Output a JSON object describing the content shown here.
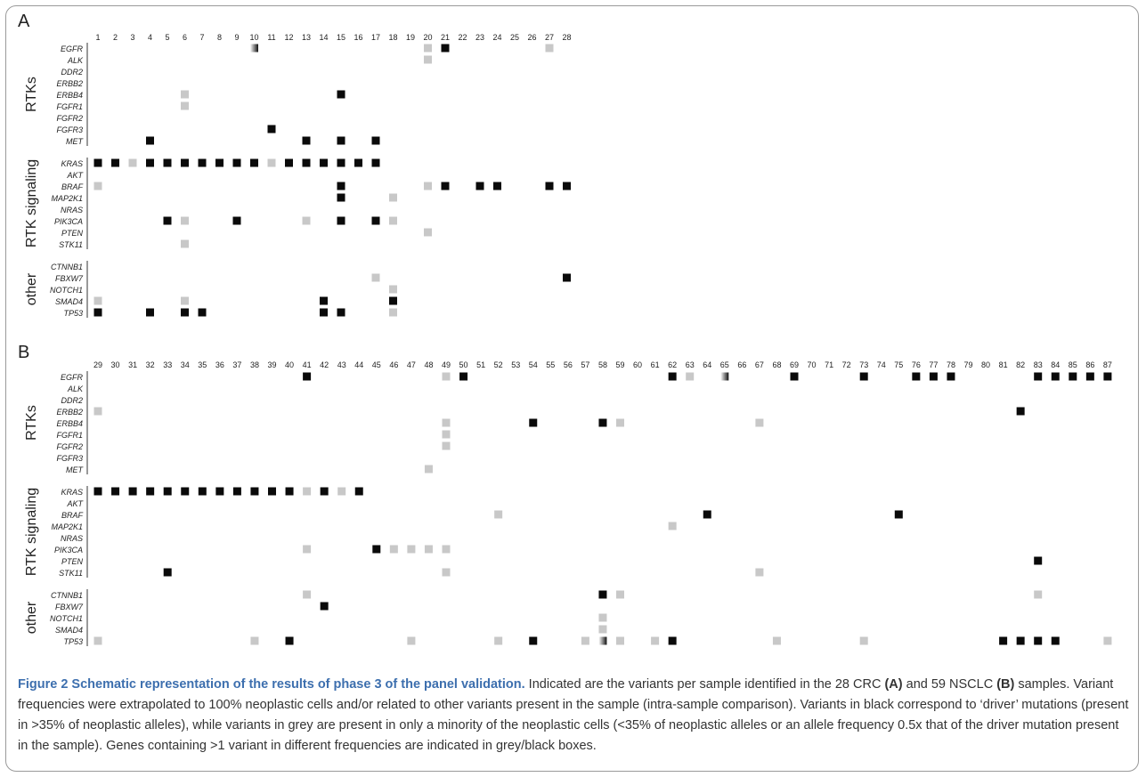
{
  "panels": [
    {
      "letter": "A",
      "samples": [
        "1",
        "2",
        "3",
        "4",
        "5",
        "6",
        "7",
        "8",
        "9",
        "10",
        "11",
        "12",
        "13",
        "14",
        "15",
        "16",
        "17",
        "18",
        "19",
        "20",
        "21",
        "22",
        "23",
        "24",
        "25",
        "26",
        "27",
        "28"
      ],
      "groups": [
        {
          "label": "RTKs",
          "genes": [
            "EGFR",
            "ALK",
            "DDR2",
            "ERBB2",
            "ERBB4",
            "FGFR1",
            "FGFR2",
            "FGFR3",
            "MET"
          ]
        },
        {
          "label": "RTK signaling",
          "genes": [
            "KRAS",
            "AKT",
            "BRAF",
            "MAP2K1",
            "NRAS",
            "PIK3CA",
            "PTEN",
            "STK11"
          ]
        },
        {
          "label": "other",
          "genes": [
            "CTNNB1",
            "FBXW7",
            "NOTCH1",
            "SMAD4",
            "TP53"
          ]
        }
      ],
      "cells": [
        [
          "EGFR",
          "10",
          "mixed"
        ],
        [
          "EGFR",
          "20",
          "grey"
        ],
        [
          "EGFR",
          "21",
          "black"
        ],
        [
          "EGFR",
          "27",
          "grey"
        ],
        [
          "ALK",
          "20",
          "grey"
        ],
        [
          "ERBB4",
          "6",
          "grey"
        ],
        [
          "ERBB4",
          "15",
          "black"
        ],
        [
          "FGFR1",
          "6",
          "grey"
        ],
        [
          "FGFR3",
          "11",
          "black"
        ],
        [
          "MET",
          "4",
          "black"
        ],
        [
          "MET",
          "13",
          "black"
        ],
        [
          "MET",
          "15",
          "black"
        ],
        [
          "MET",
          "17",
          "black"
        ],
        [
          "KRAS",
          "1",
          "black"
        ],
        [
          "KRAS",
          "2",
          "black"
        ],
        [
          "KRAS",
          "3",
          "grey"
        ],
        [
          "KRAS",
          "4",
          "black"
        ],
        [
          "KRAS",
          "5",
          "black"
        ],
        [
          "KRAS",
          "6",
          "black"
        ],
        [
          "KRAS",
          "7",
          "black"
        ],
        [
          "KRAS",
          "8",
          "black"
        ],
        [
          "KRAS",
          "9",
          "black"
        ],
        [
          "KRAS",
          "10",
          "black"
        ],
        [
          "KRAS",
          "11",
          "grey"
        ],
        [
          "KRAS",
          "12",
          "black"
        ],
        [
          "KRAS",
          "13",
          "black"
        ],
        [
          "KRAS",
          "14",
          "black"
        ],
        [
          "KRAS",
          "15",
          "black"
        ],
        [
          "KRAS",
          "16",
          "black"
        ],
        [
          "KRAS",
          "17",
          "black"
        ],
        [
          "BRAF",
          "1",
          "grey"
        ],
        [
          "BRAF",
          "15",
          "black"
        ],
        [
          "BRAF",
          "20",
          "grey"
        ],
        [
          "BRAF",
          "21",
          "black"
        ],
        [
          "BRAF",
          "23",
          "black"
        ],
        [
          "BRAF",
          "24",
          "black"
        ],
        [
          "BRAF",
          "27",
          "black"
        ],
        [
          "BRAF",
          "28",
          "black"
        ],
        [
          "MAP2K1",
          "15",
          "black"
        ],
        [
          "MAP2K1",
          "18",
          "grey"
        ],
        [
          "PIK3CA",
          "5",
          "black"
        ],
        [
          "PIK3CA",
          "6",
          "grey"
        ],
        [
          "PIK3CA",
          "9",
          "black"
        ],
        [
          "PIK3CA",
          "13",
          "grey"
        ],
        [
          "PIK3CA",
          "15",
          "black"
        ],
        [
          "PIK3CA",
          "17",
          "black"
        ],
        [
          "PIK3CA",
          "18",
          "grey"
        ],
        [
          "PTEN",
          "20",
          "grey"
        ],
        [
          "STK11",
          "6",
          "grey"
        ],
        [
          "FBXW7",
          "17",
          "grey"
        ],
        [
          "FBXW7",
          "28",
          "black"
        ],
        [
          "NOTCH1",
          "18",
          "grey"
        ],
        [
          "SMAD4",
          "1",
          "grey"
        ],
        [
          "SMAD4",
          "6",
          "grey"
        ],
        [
          "SMAD4",
          "14",
          "black"
        ],
        [
          "SMAD4",
          "18",
          "black"
        ],
        [
          "TP53",
          "1",
          "black"
        ],
        [
          "TP53",
          "4",
          "black"
        ],
        [
          "TP53",
          "6",
          "black"
        ],
        [
          "TP53",
          "7",
          "black"
        ],
        [
          "TP53",
          "14",
          "black"
        ],
        [
          "TP53",
          "15",
          "black"
        ],
        [
          "TP53",
          "18",
          "grey"
        ]
      ]
    },
    {
      "letter": "B",
      "samples": [
        "29",
        "30",
        "31",
        "32",
        "33",
        "34",
        "35",
        "36",
        "37",
        "38",
        "39",
        "40",
        "41",
        "42",
        "43",
        "44",
        "45",
        "46",
        "47",
        "48",
        "49",
        "50",
        "51",
        "52",
        "53",
        "54",
        "55",
        "56",
        "57",
        "58",
        "59",
        "60",
        "61",
        "62",
        "63",
        "64",
        "65",
        "66",
        "67",
        "68",
        "69",
        "70",
        "71",
        "72",
        "73",
        "74",
        "75",
        "76",
        "77",
        "78",
        "79",
        "80",
        "81",
        "82",
        "83",
        "84",
        "85",
        "86",
        "87"
      ],
      "groups": [
        {
          "label": "RTKs",
          "genes": [
            "EGFR",
            "ALK",
            "DDR2",
            "ERBB2",
            "ERBB4",
            "FGFR1",
            "FGFR2",
            "FGFR3",
            "MET"
          ]
        },
        {
          "label": "RTK signaling",
          "genes": [
            "KRAS",
            "AKT",
            "BRAF",
            "MAP2K1",
            "NRAS",
            "PIK3CA",
            "PTEN",
            "STK11"
          ]
        },
        {
          "label": "other",
          "genes": [
            "CTNNB1",
            "FBXW7",
            "NOTCH1",
            "SMAD4",
            "TP53"
          ]
        }
      ],
      "cells": [
        [
          "EGFR",
          "41",
          "black"
        ],
        [
          "EGFR",
          "49",
          "grey"
        ],
        [
          "EGFR",
          "50",
          "black"
        ],
        [
          "EGFR",
          "62",
          "black"
        ],
        [
          "EGFR",
          "63",
          "grey"
        ],
        [
          "EGFR",
          "65",
          "mixed"
        ],
        [
          "EGFR",
          "69",
          "black"
        ],
        [
          "EGFR",
          "73",
          "black"
        ],
        [
          "EGFR",
          "76",
          "black"
        ],
        [
          "EGFR",
          "77",
          "black"
        ],
        [
          "EGFR",
          "78",
          "black"
        ],
        [
          "EGFR",
          "83",
          "black"
        ],
        [
          "EGFR",
          "84",
          "black"
        ],
        [
          "EGFR",
          "85",
          "black"
        ],
        [
          "EGFR",
          "86",
          "black"
        ],
        [
          "EGFR",
          "87",
          "black"
        ],
        [
          "ERBB2",
          "29",
          "grey"
        ],
        [
          "ERBB2",
          "82",
          "black"
        ],
        [
          "ERBB4",
          "49",
          "grey"
        ],
        [
          "ERBB4",
          "54",
          "black"
        ],
        [
          "ERBB4",
          "58",
          "black"
        ],
        [
          "ERBB4",
          "59",
          "grey"
        ],
        [
          "ERBB4",
          "67",
          "grey"
        ],
        [
          "FGFR1",
          "49",
          "grey"
        ],
        [
          "FGFR2",
          "49",
          "grey"
        ],
        [
          "MET",
          "48",
          "grey"
        ],
        [
          "KRAS",
          "29",
          "black"
        ],
        [
          "KRAS",
          "30",
          "black"
        ],
        [
          "KRAS",
          "31",
          "black"
        ],
        [
          "KRAS",
          "32",
          "black"
        ],
        [
          "KRAS",
          "33",
          "black"
        ],
        [
          "KRAS",
          "34",
          "black"
        ],
        [
          "KRAS",
          "35",
          "black"
        ],
        [
          "KRAS",
          "36",
          "black"
        ],
        [
          "KRAS",
          "37",
          "black"
        ],
        [
          "KRAS",
          "38",
          "black"
        ],
        [
          "KRAS",
          "39",
          "black"
        ],
        [
          "KRAS",
          "40",
          "black"
        ],
        [
          "KRAS",
          "41",
          "grey"
        ],
        [
          "KRAS",
          "42",
          "black"
        ],
        [
          "KRAS",
          "43",
          "grey"
        ],
        [
          "KRAS",
          "44",
          "black"
        ],
        [
          "BRAF",
          "52",
          "grey"
        ],
        [
          "BRAF",
          "64",
          "black"
        ],
        [
          "BRAF",
          "75",
          "black"
        ],
        [
          "MAP2K1",
          "62",
          "grey"
        ],
        [
          "PIK3CA",
          "41",
          "grey"
        ],
        [
          "PIK3CA",
          "45",
          "black"
        ],
        [
          "PIK3CA",
          "46",
          "grey"
        ],
        [
          "PIK3CA",
          "47",
          "grey"
        ],
        [
          "PIK3CA",
          "48",
          "grey"
        ],
        [
          "PIK3CA",
          "49",
          "grey"
        ],
        [
          "PTEN",
          "83",
          "black"
        ],
        [
          "STK11",
          "33",
          "black"
        ],
        [
          "STK11",
          "49",
          "grey"
        ],
        [
          "STK11",
          "67",
          "grey"
        ],
        [
          "CTNNB1",
          "41",
          "grey"
        ],
        [
          "CTNNB1",
          "58",
          "black"
        ],
        [
          "CTNNB1",
          "59",
          "grey"
        ],
        [
          "CTNNB1",
          "83",
          "grey"
        ],
        [
          "FBXW7",
          "42",
          "black"
        ],
        [
          "NOTCH1",
          "58",
          "grey"
        ],
        [
          "SMAD4",
          "58",
          "grey"
        ],
        [
          "TP53",
          "29",
          "grey"
        ],
        [
          "TP53",
          "38",
          "grey"
        ],
        [
          "TP53",
          "40",
          "black"
        ],
        [
          "TP53",
          "47",
          "grey"
        ],
        [
          "TP53",
          "52",
          "grey"
        ],
        [
          "TP53",
          "54",
          "black"
        ],
        [
          "TP53",
          "57",
          "grey"
        ],
        [
          "TP53",
          "58",
          "mixed"
        ],
        [
          "TP53",
          "59",
          "grey"
        ],
        [
          "TP53",
          "61",
          "grey"
        ],
        [
          "TP53",
          "62",
          "black"
        ],
        [
          "TP53",
          "68",
          "grey"
        ],
        [
          "TP53",
          "73",
          "grey"
        ],
        [
          "TP53",
          "81",
          "black"
        ],
        [
          "TP53",
          "82",
          "black"
        ],
        [
          "TP53",
          "83",
          "black"
        ],
        [
          "TP53",
          "84",
          "black"
        ],
        [
          "TP53",
          "87",
          "grey"
        ]
      ]
    }
  ],
  "colors": {
    "black": "#0a0a0a",
    "grey": "#c8c8c8",
    "mixed_from": "#ffffff",
    "mixed_to": "#111111",
    "title_blue": "#3d6fae"
  },
  "caption": {
    "title": "Figure 2 Schematic representation of the results of phase 3 of the panel validation.",
    "text_1": " Indicated are the variants per sample identified in the 28 CRC ",
    "bold_a": "(A)",
    "text_2": " and 59 NSCLC ",
    "bold_b": "(B)",
    "text_3": " samples. Variant frequencies were extrapolated to 100% neoplastic cells and/or related to other variants present in the sample (intra-sample comparison). Variants in black correspond to ‘driver’ mutations (present in >35% of neoplastic alleles), while variants in grey are present in only a minority of the neoplastic cells (<35% of neoplastic alleles or an allele frequency 0.5x that of the driver mutation present in the sample). Genes containing >1 variant in different frequencies are indicated in grey/black boxes."
  }
}
